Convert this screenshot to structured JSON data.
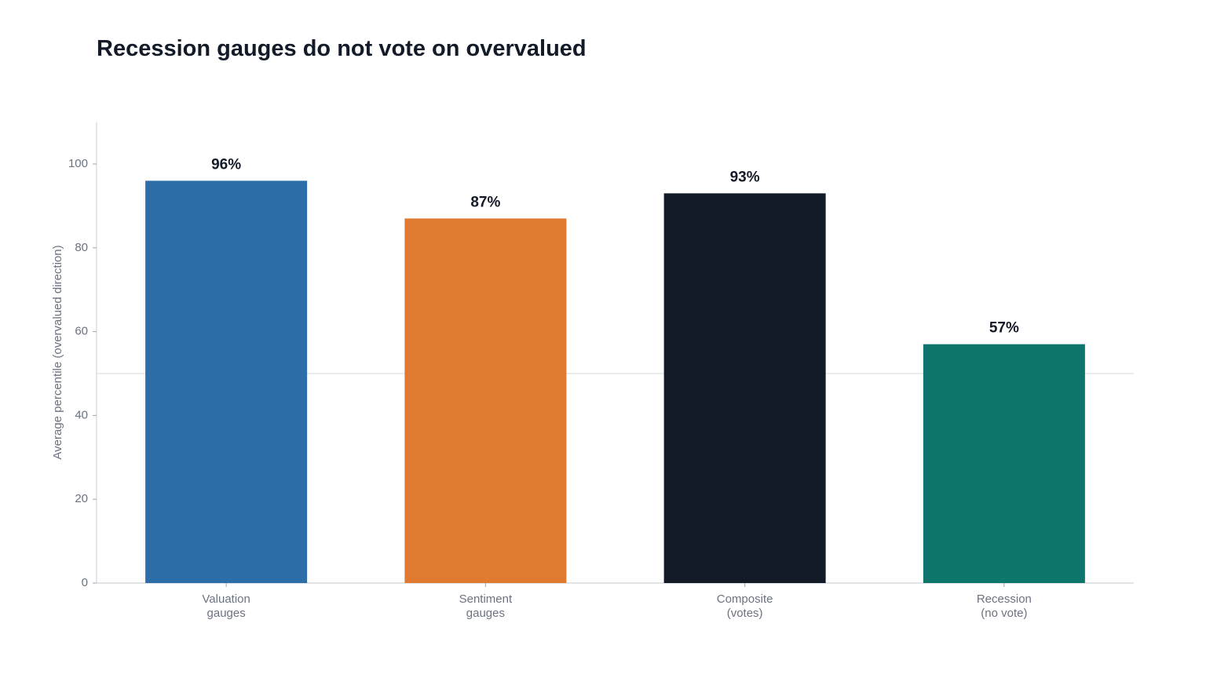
{
  "chart_data": {
    "type": "bar",
    "title": "Recession gauges do not vote on overvalued",
    "xlabel": "",
    "ylabel": "Average percentile (overvalued direction)",
    "ylim": [
      0,
      110
    ],
    "yticks": [
      0,
      20,
      40,
      60,
      80,
      100
    ],
    "reference_line": 50,
    "grid": false,
    "categories": [
      [
        "Valuation",
        "gauges"
      ],
      [
        "Sentiment",
        "gauges"
      ],
      [
        "Composite",
        "(votes)"
      ],
      [
        "Recession",
        "(no vote)"
      ]
    ],
    "values": [
      96,
      87,
      93,
      57
    ],
    "value_labels": [
      "96%",
      "87%",
      "93%",
      "57%"
    ],
    "colors": [
      "#2d6ea8",
      "#e07a30",
      "#131a28",
      "#0f766e"
    ]
  }
}
